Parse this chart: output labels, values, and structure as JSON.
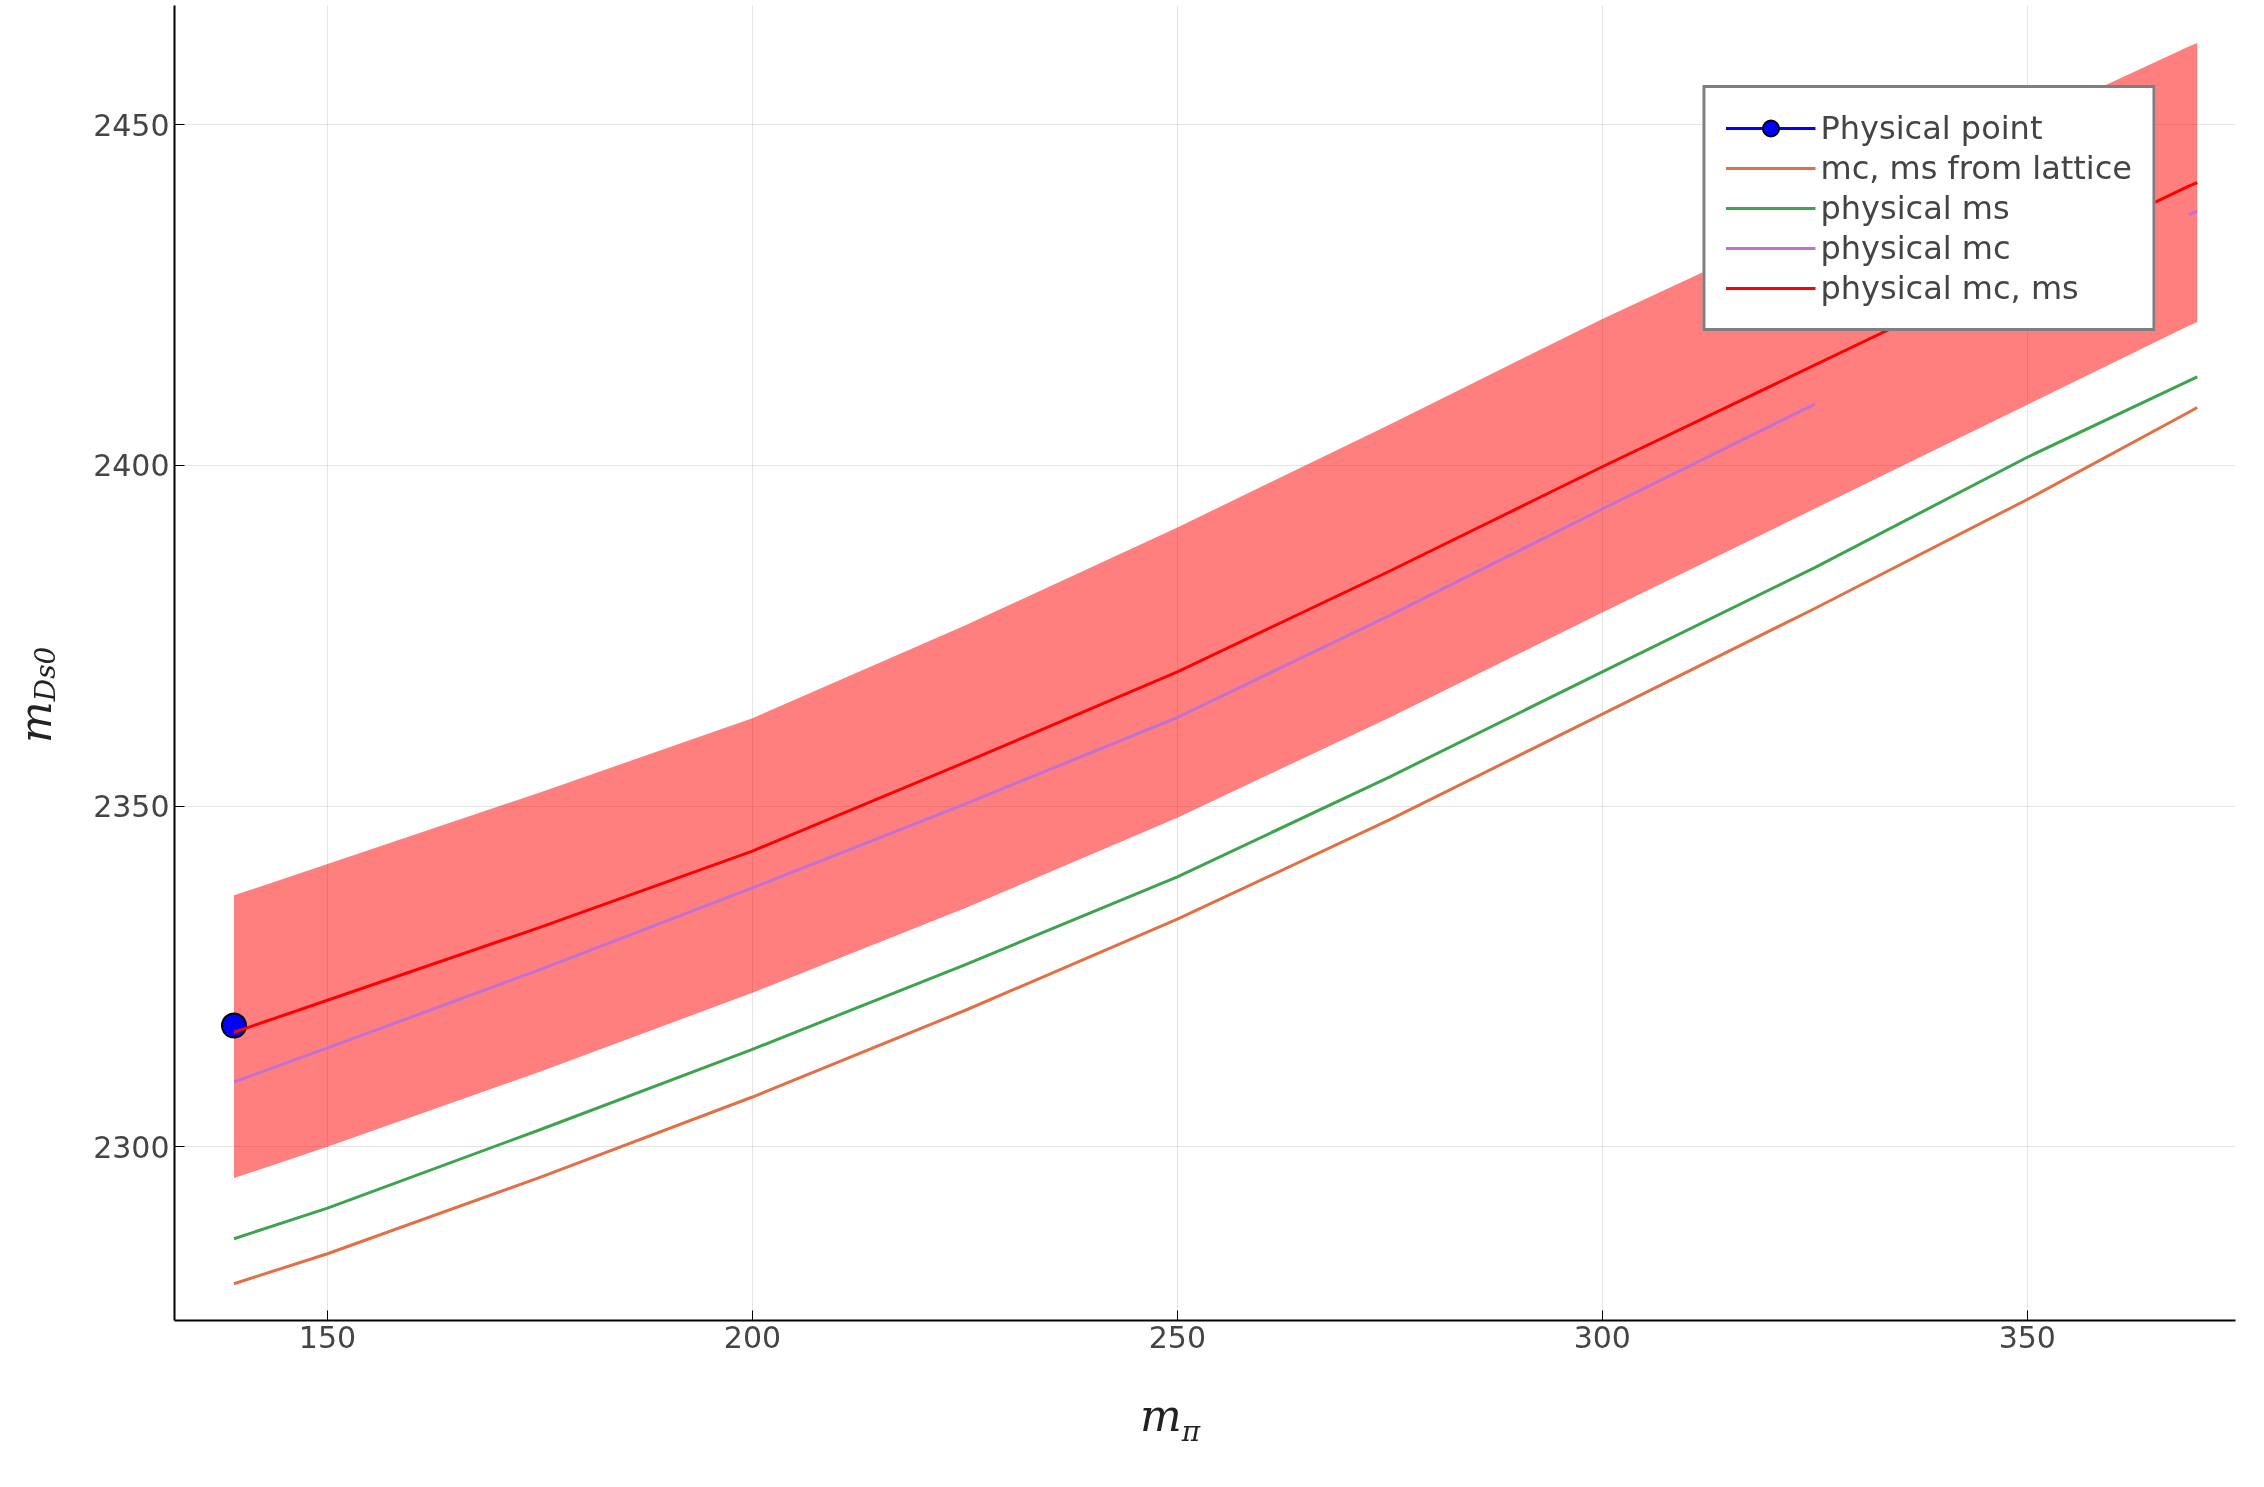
{
  "chart_data": {
    "type": "line",
    "xlabel": "m$_{π}$",
    "ylabel": "m$_{Ds0}$",
    "x": [
      139,
      150,
      175,
      200,
      225,
      250,
      275,
      300,
      325,
      350,
      369,
      370
    ],
    "xlim": [
      132,
      374.5
    ],
    "ylim": [
      2274.5,
      2467.5
    ],
    "xticks": [
      150,
      200,
      250,
      300,
      350
    ],
    "yticks": [
      2300,
      2350,
      2400,
      2450
    ],
    "grid": true,
    "legend": "top right",
    "series": [
      {
        "name": "Physical point",
        "type": "scatter",
        "marker": "circle",
        "color": "#0000ff",
        "x": [
          139
        ],
        "values": [
          2317.8
        ]
      },
      {
        "name": "mc, ms from lattice",
        "color": "#e26f46",
        "values": [
          2279.9,
          2284.3,
          2295.5,
          2307.3,
          2320,
          2333.4,
          2348,
          2363.5,
          2379,
          2395,
          2407.8,
          2408.5
        ]
      },
      {
        "name": "physical ms",
        "color": "#3da44d",
        "values": [
          2286.5,
          2291,
          2302.5,
          2314.3,
          2326.7,
          2339.6,
          2354.3,
          2369.7,
          2385,
          2401.2,
          2412.4,
          2413
        ]
      },
      {
        "name": "physical mc",
        "color": "#c271d2",
        "values": [
          2309.5,
          2314.5,
          2326,
          2338,
          2350.3,
          2363,
          2378,
          2393.6,
          2409,
          null,
          2436.8,
          2437.3
        ]
      },
      {
        "name": "physical mc, ms",
        "color": "#ff0000",
        "x": [
          139,
          150,
          175,
          200,
          225,
          250,
          275,
          300,
          369,
          370
        ],
        "values": [
          2316.8,
          2321.5,
          2332.2,
          2343.4,
          2356.4,
          2369.7,
          2384.5,
          2399.8,
          2441,
          2441.5
        ],
        "lower": [
          2295.4,
          2300,
          2311,
          2322.6,
          2335,
          2348.3,
          2363,
          2378.4,
          2420.5,
          2421
        ],
        "upper": [
          2336.9,
          2341.5,
          2352,
          2362.9,
          2376.5,
          2390.9,
          2406,
          2421.5,
          2461.5,
          2462
        ]
      }
    ]
  }
}
